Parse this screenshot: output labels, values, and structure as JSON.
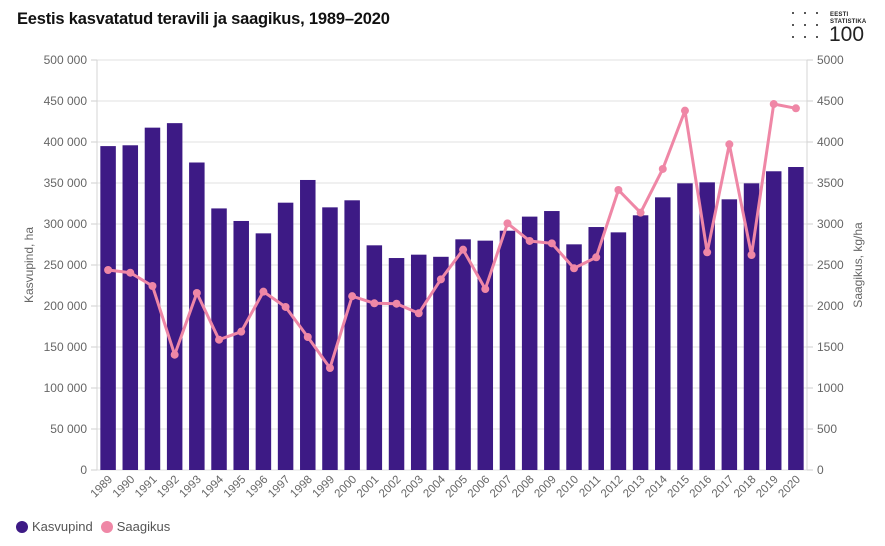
{
  "header": {
    "title": "Eestis kasvatatud teravili ja saagikus, 1989–2020"
  },
  "logo": {
    "line1": "EESTI",
    "line2": "STATISTIKA",
    "line3": "100"
  },
  "colors": {
    "bar": "#3d1a85",
    "line": "#ef87a6",
    "grid": "#e2e2e2",
    "axis_text": "#666666"
  },
  "chart_data": {
    "type": "bar+line",
    "title": "Eestis kasvatatud teravili ja saagikus, 1989–2020",
    "xlabel": "",
    "ylabel_left": "Kasvupind, ha",
    "ylabel_right": "Saagikus, kg/ha",
    "ylim_left": [
      0,
      500000
    ],
    "ylim_right": [
      0,
      5000
    ],
    "yticks_left": [
      "0",
      "50 000",
      "100 000",
      "150 000",
      "200 000",
      "250 000",
      "300 000",
      "350 000",
      "400 000",
      "450 000",
      "500 000"
    ],
    "yticks_right": [
      "0",
      "500",
      "1000",
      "1500",
      "2000",
      "2500",
      "3000",
      "3500",
      "4000",
      "4500",
      "5000"
    ],
    "grid": true,
    "legend_position": "bottom-left",
    "categories": [
      "1989",
      "1990",
      "1991",
      "1992",
      "1993",
      "1994",
      "1995",
      "1996",
      "1997",
      "1998",
      "1999",
      "2000",
      "2001",
      "2002",
      "2003",
      "2004",
      "2005",
      "2006",
      "2007",
      "2008",
      "2009",
      "2010",
      "2011",
      "2012",
      "2013",
      "2014",
      "2015",
      "2016",
      "2017",
      "2018",
      "2019",
      "2020"
    ],
    "series": [
      {
        "name": "Kasvupind",
        "type": "bar",
        "axis": "left",
        "values": [
          395000,
          396000,
          417500,
          423000,
          375000,
          319000,
          303700,
          288600,
          326000,
          353700,
          320300,
          328900,
          274000,
          258500,
          262600,
          260000,
          281300,
          279700,
          291800,
          309000,
          315800,
          275200,
          296300,
          289800,
          310600,
          332500,
          349600,
          350800,
          330100,
          349600,
          364300,
          369500
        ]
      },
      {
        "name": "Saagikus",
        "type": "line",
        "axis": "right",
        "values": [
          2439,
          2406,
          2244,
          1406,
          2159,
          1589,
          1687,
          2175,
          1988,
          1622,
          1244,
          2120,
          2033,
          2028,
          1911,
          2325,
          2687,
          2207,
          3008,
          2793,
          2764,
          2460,
          2594,
          3415,
          3138,
          3671,
          4382,
          2655,
          3972,
          2622,
          4463,
          4411
        ]
      }
    ]
  }
}
